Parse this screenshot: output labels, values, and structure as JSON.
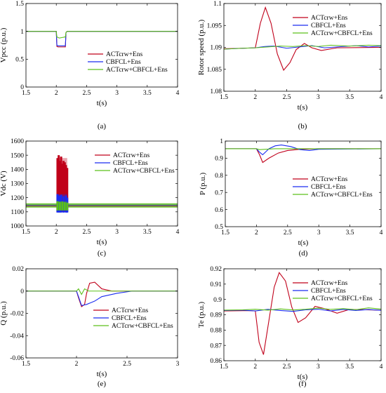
{
  "figure": {
    "colors": {
      "ACTcrw+Ens": "#c0001a",
      "CBFCL+Ens": "#1a2cf0",
      "ACTcrw+CBFCL+Ens": "#5cc01a",
      "axis": "#000000",
      "background": "#ffffff"
    }
  },
  "chart_data": [
    {
      "id": "a",
      "type": "line",
      "caption": "(a)",
      "xlabel": "t(s)",
      "ylabel": "Vpcc (p.u.)",
      "xlim": [
        1.5,
        4
      ],
      "ylim": [
        0,
        1.5
      ],
      "xticks": [
        1.5,
        2,
        2.5,
        3,
        3.5,
        4
      ],
      "xticklabels": [
        "1.5",
        "2",
        "2.5",
        "3",
        "3.5",
        "4"
      ],
      "yticks": [
        0,
        0.5,
        1,
        1.5
      ],
      "yticklabels": [
        "0",
        "0.5",
        "1",
        "1.5"
      ],
      "legend": "center-right",
      "series": [
        {
          "name": "ACTcrw+Ens",
          "x": [
            1.5,
            2.0,
            2.01,
            2.03,
            2.1,
            2.15,
            2.16,
            2.18,
            4.0
          ],
          "y": [
            1.0,
            1.0,
            0.73,
            0.72,
            0.72,
            0.72,
            0.98,
            1.0,
            1.0
          ]
        },
        {
          "name": "CBFCL+Ens",
          "x": [
            1.5,
            2.0,
            2.01,
            2.03,
            2.1,
            2.15,
            2.16,
            2.18,
            4.0
          ],
          "y": [
            1.0,
            1.0,
            0.75,
            0.74,
            0.74,
            0.74,
            0.98,
            1.0,
            1.0
          ]
        },
        {
          "name": "ACTcrw+CBFCL+Ens",
          "x": [
            1.5,
            2.0,
            2.01,
            2.05,
            2.1,
            2.15,
            2.16,
            2.18,
            4.0
          ],
          "y": [
            1.0,
            1.0,
            0.9,
            0.88,
            0.89,
            0.9,
            0.98,
            1.0,
            1.0
          ]
        }
      ]
    },
    {
      "id": "b",
      "type": "line",
      "caption": "(b)",
      "xlabel": "t(s)",
      "ylabel": "Rotor speed (p.u.)",
      "xlim": [
        1.5,
        4
      ],
      "ylim": [
        1.08,
        1.1
      ],
      "xticks": [
        1.5,
        2,
        2.5,
        3,
        3.5,
        4
      ],
      "xticklabels": [
        "1.5",
        "2",
        "2.5",
        "3",
        "3.5",
        "4"
      ],
      "yticks": [
        1.08,
        1.085,
        1.09,
        1.095,
        1.1
      ],
      "yticklabels": [
        "1.08",
        "1.085",
        "1.09",
        "1.095",
        "1.1"
      ],
      "legend": "top-right",
      "series": [
        {
          "name": "ACTcrw+Ens",
          "x": [
            1.5,
            1.8,
            2.0,
            2.08,
            2.16,
            2.25,
            2.35,
            2.45,
            2.55,
            2.65,
            2.78,
            2.9,
            3.05,
            3.3,
            4.0
          ],
          "y": [
            1.0897,
            1.0898,
            1.0899,
            1.0955,
            1.0991,
            1.0955,
            1.0885,
            1.0848,
            1.0865,
            1.0895,
            1.0909,
            1.0899,
            1.0893,
            1.0899,
            1.09
          ]
        },
        {
          "name": "CBFCL+Ens",
          "x": [
            1.5,
            1.8,
            2.0,
            2.15,
            2.3,
            2.5,
            2.7,
            2.9,
            3.1,
            3.3,
            3.6,
            3.8,
            4.0
          ],
          "y": [
            1.0896,
            1.0898,
            1.0899,
            1.0902,
            1.0903,
            1.0898,
            1.0901,
            1.0904,
            1.0899,
            1.0901,
            1.0904,
            1.0901,
            1.0903
          ]
        },
        {
          "name": "ACTcrw+CBFCL+Ens",
          "x": [
            1.5,
            1.8,
            2.0,
            2.2,
            2.4,
            2.6,
            2.8,
            3.0,
            3.2,
            3.5,
            3.8,
            4.0
          ],
          "y": [
            1.0896,
            1.0898,
            1.0899,
            1.0901,
            1.0903,
            1.0902,
            1.0904,
            1.0902,
            1.0905,
            1.0903,
            1.0905,
            1.0904
          ]
        }
      ]
    },
    {
      "id": "c",
      "type": "line",
      "caption": "(c)",
      "xlabel": "t(s)",
      "ylabel": "Vdc (V)",
      "xlim": [
        1.5,
        4
      ],
      "ylim": [
        1000,
        1600
      ],
      "xticks": [
        1.5,
        2,
        2.5,
        3,
        3.5,
        4
      ],
      "xticklabels": [
        "1.5",
        "2",
        "2.5",
        "3",
        "3.5",
        "4"
      ],
      "yticks": [
        1000,
        1100,
        1200,
        1300,
        1400,
        1500,
        1600
      ],
      "yticklabels": [
        "1000",
        "1100",
        "1200",
        "1300",
        "1400",
        "1500",
        "1600"
      ],
      "legend": "top-right",
      "band": {
        "y_low": 1130,
        "y_high": 1160
      },
      "series": [
        {
          "name": "ACTcrw+Ens",
          "x": [
            2.02,
            2.04,
            2.06,
            2.08,
            2.1,
            2.12,
            2.14,
            2.16,
            2.18
          ],
          "y": [
            1480,
            1500,
            1460,
            1490,
            1440,
            1460,
            1450,
            1430,
            1410
          ],
          "y_low": 1100
        },
        {
          "name": "CBFCL+Ens",
          "x": [
            2.02,
            2.05,
            2.08,
            2.12,
            2.16,
            2.18
          ],
          "y": [
            1225,
            1215,
            1220,
            1210,
            1215,
            1200
          ],
          "y_low": 1095
        },
        {
          "name": "ACTcrw+CBFCL+Ens",
          "x": [
            2.02,
            2.06,
            2.1,
            2.14,
            2.18
          ],
          "y": [
            1175,
            1170,
            1172,
            1168,
            1165
          ],
          "y_low": 1110
        }
      ]
    },
    {
      "id": "d",
      "type": "line",
      "caption": "(d)",
      "xlabel": "t(s)",
      "ylabel": "P (p.u.)",
      "xlim": [
        1.5,
        4
      ],
      "ylim": [
        0.5,
        1
      ],
      "xticks": [
        1.5,
        2,
        2.5,
        3,
        3.5,
        4
      ],
      "xticklabels": [
        "1.5",
        "2",
        "2.5",
        "3",
        "3.5",
        "4"
      ],
      "yticks": [
        0.5,
        0.6,
        0.7,
        0.8,
        0.9,
        1
      ],
      "yticklabels": [
        "0.5",
        "0.6",
        "0.7",
        "0.8",
        "0.9",
        "1"
      ],
      "legend": "bottom-right",
      "series": [
        {
          "name": "ACTcrw+Ens",
          "x": [
            1.5,
            2.0,
            2.05,
            2.1,
            2.2,
            2.35,
            2.5,
            2.7,
            3.0,
            4.0
          ],
          "y": [
            0.955,
            0.955,
            0.92,
            0.875,
            0.9,
            0.93,
            0.945,
            0.952,
            0.955,
            0.955
          ]
        },
        {
          "name": "CBFCL+Ens",
          "x": [
            1.5,
            2.0,
            2.05,
            2.1,
            2.2,
            2.3,
            2.4,
            2.55,
            2.7,
            2.85,
            3.0,
            4.0
          ],
          "y": [
            0.955,
            0.955,
            0.935,
            0.92,
            0.955,
            0.972,
            0.977,
            0.968,
            0.95,
            0.945,
            0.952,
            0.955
          ]
        },
        {
          "name": "ACTcrw+CBFCL+Ens",
          "x": [
            1.5,
            2.0,
            2.05,
            2.15,
            2.3,
            4.0
          ],
          "y": [
            0.955,
            0.955,
            0.95,
            0.952,
            0.955,
            0.955
          ]
        }
      ]
    },
    {
      "id": "e",
      "type": "line",
      "caption": "(e)",
      "xlabel": "t(s)",
      "ylabel": "Q (p.u.)",
      "xlim": [
        1.5,
        3
      ],
      "ylim": [
        -0.06,
        0.02
      ],
      "xticks": [
        1.5,
        2,
        2.5,
        3
      ],
      "xticklabels": [
        "1.5",
        "2",
        "2.5",
        "3"
      ],
      "yticks": [
        -0.06,
        -0.04,
        -0.02,
        0,
        0.02
      ],
      "yticklabels": [
        "-0.06",
        "-0.04",
        "-0.02",
        "0",
        "0.02"
      ],
      "legend": "bottom-right",
      "series": [
        {
          "name": "ACTcrw+Ens",
          "x": [
            1.5,
            2.0,
            2.02,
            2.05,
            2.08,
            2.1,
            2.13,
            2.18,
            2.25,
            2.35,
            3.0
          ],
          "y": [
            0,
            0,
            -0.006,
            -0.014,
            -0.012,
            -0.002,
            0.007,
            0.008,
            0.002,
            0,
            0
          ]
        },
        {
          "name": "CBFCL+Ens",
          "x": [
            1.5,
            2.0,
            2.02,
            2.05,
            2.1,
            2.18,
            2.25,
            2.4,
            2.55,
            3.0
          ],
          "y": [
            0,
            0,
            -0.005,
            -0.013,
            -0.012,
            -0.009,
            -0.005,
            -0.002,
            0,
            0
          ]
        },
        {
          "name": "ACTcrw+CBFCL+Ens",
          "x": [
            1.5,
            2.0,
            2.02,
            2.05,
            2.08,
            2.12,
            2.2,
            3.0
          ],
          "y": [
            0,
            0,
            0.002,
            -0.003,
            0.002,
            0.0,
            0.0,
            0
          ]
        }
      ]
    },
    {
      "id": "f",
      "type": "line",
      "caption": "(f)",
      "xlabel": "t(s)",
      "ylabel": "Te (p.u.)",
      "xlim": [
        1.5,
        4
      ],
      "ylim": [
        0.86,
        0.92
      ],
      "xticks": [
        1.5,
        2,
        2.5,
        3,
        3.5,
        4
      ],
      "xticklabels": [
        "1.5",
        "2",
        "2.5",
        "3",
        "3.5",
        "4"
      ],
      "yticks": [
        0.86,
        0.87,
        0.88,
        0.89,
        0.9,
        0.91,
        0.92
      ],
      "yticklabels": [
        "0.86",
        "0.87",
        "0.88",
        "0.89",
        "0.9",
        "0.91",
        "0.92"
      ],
      "legend": "top-right",
      "series": [
        {
          "name": "ACTcrw+Ens",
          "x": [
            1.5,
            1.9,
            2.0,
            2.06,
            2.13,
            2.2,
            2.3,
            2.38,
            2.48,
            2.58,
            2.68,
            2.8,
            2.95,
            3.1,
            3.3,
            3.5,
            4.0
          ],
          "y": [
            0.8925,
            0.8927,
            0.8925,
            0.872,
            0.864,
            0.882,
            0.908,
            0.9175,
            0.912,
            0.895,
            0.885,
            0.888,
            0.8955,
            0.894,
            0.891,
            0.8935,
            0.893
          ]
        },
        {
          "name": "CBFCL+Ens",
          "x": [
            1.5,
            1.8,
            2.0,
            2.2,
            2.4,
            2.6,
            2.8,
            3.0,
            3.2,
            3.4,
            3.6,
            3.8,
            4.0
          ],
          "y": [
            0.8928,
            0.893,
            0.8925,
            0.8935,
            0.8928,
            0.8922,
            0.8932,
            0.8936,
            0.8925,
            0.8935,
            0.8928,
            0.8934,
            0.8929
          ]
        },
        {
          "name": "ACTcrw+CBFCL+Ens",
          "x": [
            1.5,
            1.8,
            2.0,
            2.2,
            2.4,
            2.6,
            2.8,
            3.0,
            3.2,
            3.4,
            3.6,
            3.8,
            4.0
          ],
          "y": [
            0.893,
            0.8932,
            0.8936,
            0.893,
            0.8938,
            0.8931,
            0.8936,
            0.8943,
            0.8935,
            0.894,
            0.8933,
            0.8945,
            0.8937
          ]
        }
      ]
    }
  ]
}
